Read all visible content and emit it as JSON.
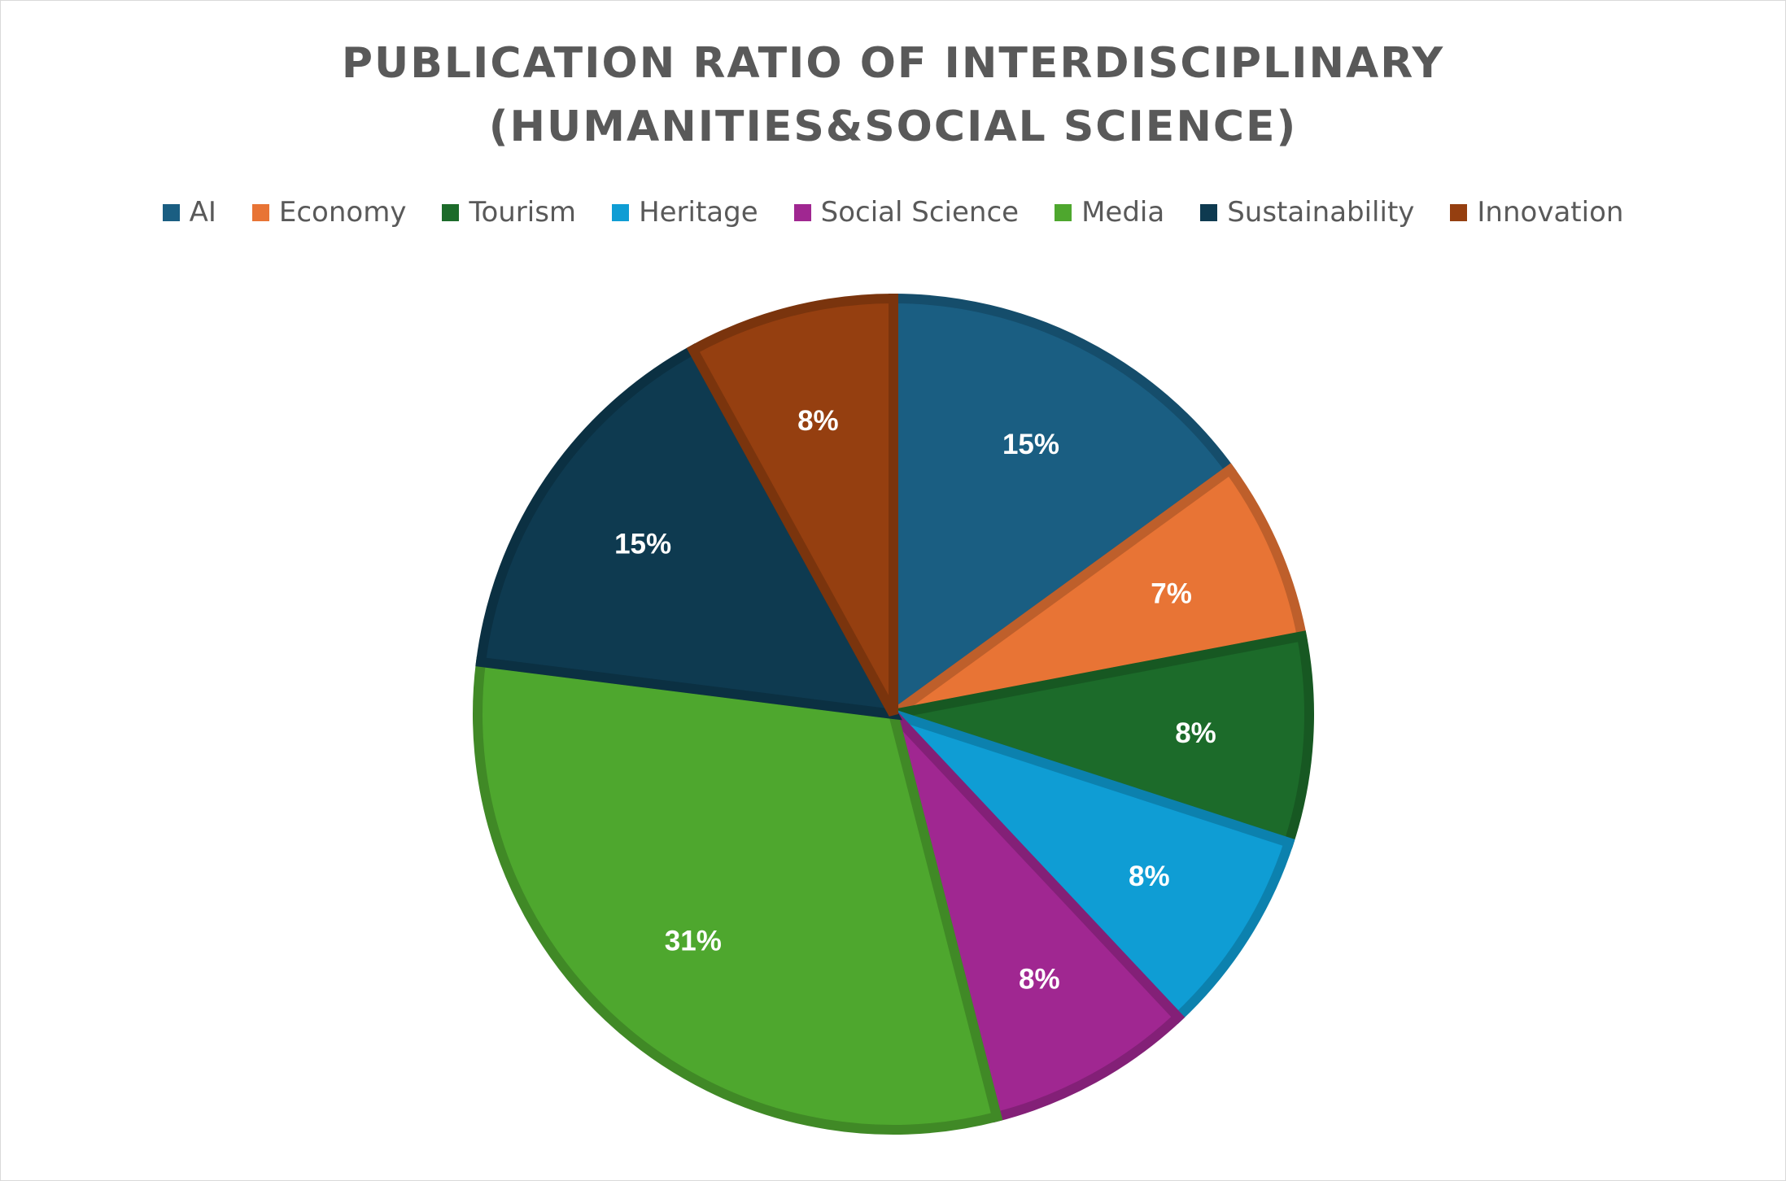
{
  "chart_data": {
    "type": "pie",
    "title_lines": [
      "PUBLICATION RATIO OF INTERDISCIPLINARY",
      "(HUMANITIES&SOCIAL SCIENCE)"
    ],
    "legend_position": "top",
    "slices": [
      {
        "name": "AI",
        "value": 15,
        "label": "15%",
        "color": "#1A5E82"
      },
      {
        "name": "Economy",
        "value": 7,
        "label": "7%",
        "color": "#E87435"
      },
      {
        "name": "Tourism",
        "value": 8,
        "label": "8%",
        "color": "#1C6B2A"
      },
      {
        "name": "Heritage",
        "value": 8,
        "label": "8%",
        "color": "#0F9DD4"
      },
      {
        "name": "Social Science",
        "value": 8,
        "label": "8%",
        "color": "#A02791"
      },
      {
        "name": "Media",
        "value": 31,
        "label": "31%",
        "color": "#4EA72E"
      },
      {
        "name": "Sustainability",
        "value": 15,
        "label": "15%",
        "color": "#0E3A50"
      },
      {
        "name": "Innovation",
        "value": 8,
        "label": "8%",
        "color": "#953F10"
      }
    ]
  }
}
